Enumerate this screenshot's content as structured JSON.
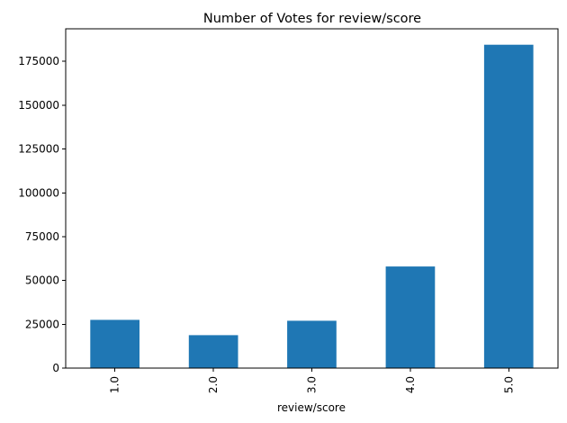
{
  "chart_data": {
    "type": "bar",
    "title": "Number of Votes for review/score",
    "xlabel": "review/score",
    "ylabel": "",
    "categories": [
      "1.0",
      "2.0",
      "3.0",
      "4.0",
      "5.0"
    ],
    "values": [
      27500,
      18800,
      27000,
      58000,
      184500
    ],
    "ylim": [
      0,
      193600
    ],
    "yticks": [
      0,
      25000,
      50000,
      75000,
      100000,
      125000,
      150000,
      175000
    ],
    "ytick_labels": [
      "0",
      "25000",
      "50000",
      "75000",
      "100000",
      "125000",
      "150000",
      "175000"
    ],
    "grid": false,
    "legend": "none",
    "bar_color": "#1f77b4"
  }
}
